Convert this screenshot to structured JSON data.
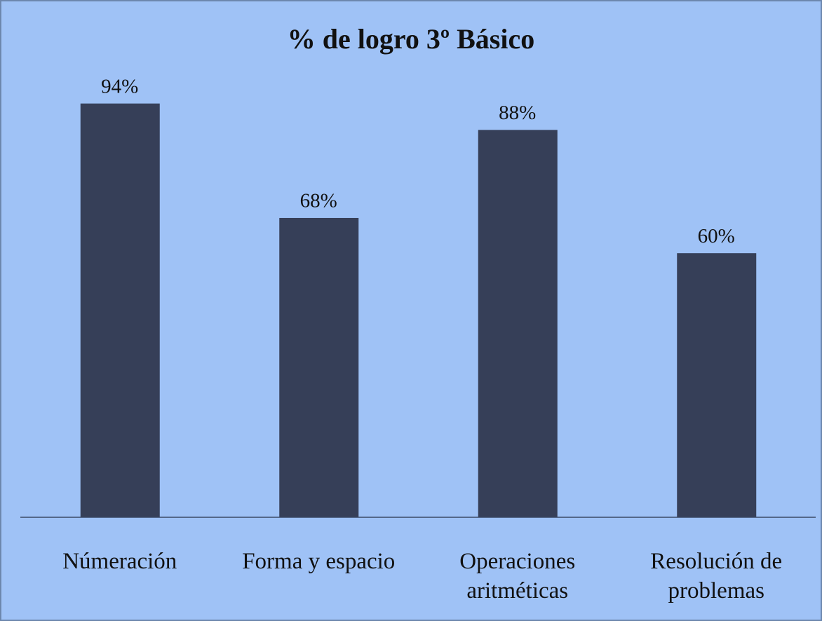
{
  "chart_data": {
    "type": "bar",
    "title": "% de logro 3º Básico",
    "categories": [
      "Númeración",
      "Forma y espacio",
      "Operaciones aritméticas",
      "Resolución de problemas"
    ],
    "values": [
      94,
      68,
      88,
      60
    ],
    "value_labels": [
      "94%",
      "68%",
      "88%",
      "60%"
    ],
    "color": "#363f58"
  }
}
